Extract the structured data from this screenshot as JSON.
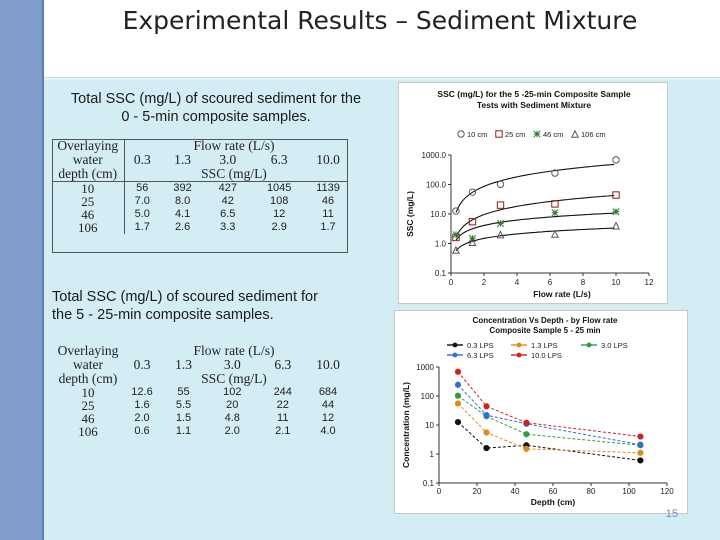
{
  "slide": {
    "title": "Experimental Results – Sediment Mixture",
    "page_number": "15"
  },
  "table1": {
    "caption": "Total SSC (mg/L) of scoured sediment for the 0 - 5-min composite samples.",
    "header_depth": [
      "Overlaying",
      "water",
      "depth (cm)"
    ],
    "header_flow": "Flow rate (L/s)",
    "flow_rates": [
      "0.3",
      "1.3",
      "3.0",
      "6.3",
      "10.0"
    ],
    "header_unit": "SSC (mg/L)",
    "rows": [
      {
        "depth": "10",
        "values": [
          "56",
          "392",
          "427",
          "1045",
          "1139"
        ]
      },
      {
        "depth": "25",
        "values": [
          "7.0",
          "8.0",
          "42",
          "108",
          "46"
        ]
      },
      {
        "depth": "46",
        "values": [
          "5.0",
          "4.1",
          "6.5",
          "12",
          "11"
        ]
      },
      {
        "depth": "106",
        "values": [
          "1.7",
          "2.6",
          "3.3",
          "2.9",
          "1.7"
        ]
      }
    ]
  },
  "table2": {
    "caption": "Total SSC (mg/L) of scoured sediment for the 5 - 25-min composite samples.",
    "header_depth": [
      "Overlaying",
      "water",
      "depth (cm)"
    ],
    "header_flow": "Flow rate (L/s)",
    "flow_rates": [
      "0.3",
      "1.3",
      "3.0",
      "6.3",
      "10.0"
    ],
    "header_unit": "SSC (mg/L)",
    "rows": [
      {
        "depth": "10",
        "values": [
          "12.6",
          "55",
          "102",
          "244",
          "684"
        ]
      },
      {
        "depth": "25",
        "values": [
          "1.6",
          "5.5",
          "20",
          "22",
          "44"
        ]
      },
      {
        "depth": "46",
        "values": [
          "2.0",
          "1.5",
          "4.8",
          "11",
          "12"
        ]
      },
      {
        "depth": "106",
        "values": [
          "0.6",
          "1.1",
          "2.0",
          "2.1",
          "4.0"
        ]
      }
    ]
  },
  "chart_data": [
    {
      "type": "scatter",
      "title": "SSC (mg/L) for the 5 -25-min Composite Sample Tests with Sediment Mixture",
      "xlabel": "Flow rate (L/s)",
      "ylabel": "SSC (mg/L)",
      "xlim": [
        0,
        12
      ],
      "ylim": [
        0.1,
        1000
      ],
      "yscale": "log",
      "x_ticks": [
        "0",
        "2",
        "4",
        "6",
        "8",
        "10",
        "12"
      ],
      "y_ticks": [
        "0.1",
        "1.0",
        "10.0",
        "100.0",
        "1000.0"
      ],
      "legend_position": "top",
      "series": [
        {
          "name": "10 cm",
          "marker": "circle",
          "color": "#555555",
          "x": [
            0.3,
            1.3,
            3.0,
            6.3,
            10.0
          ],
          "y": [
            12.6,
            55,
            102,
            244,
            684
          ]
        },
        {
          "name": "25 cm",
          "marker": "square",
          "color": "#8b1a1a",
          "x": [
            0.3,
            1.3,
            3.0,
            6.3,
            10.0
          ],
          "y": [
            1.6,
            5.5,
            20,
            22,
            44
          ]
        },
        {
          "name": "46 cm",
          "marker": "star",
          "color": "#2a7a2a",
          "x": [
            0.3,
            1.3,
            3.0,
            6.3,
            10.0
          ],
          "y": [
            2.0,
            1.5,
            4.8,
            11,
            12
          ]
        },
        {
          "name": "106 cm",
          "marker": "triangle",
          "color": "#555555",
          "x": [
            0.3,
            1.3,
            3.0,
            6.3,
            10.0
          ],
          "y": [
            0.6,
            1.1,
            2.0,
            2.1,
            4.0
          ]
        }
      ]
    },
    {
      "type": "line",
      "title": "Concentration Vs Depth - by Flow rate Composite Sample 5 - 25 min",
      "xlabel": "Depth (cm)",
      "ylabel": "Concentration (mg/L)",
      "xlim": [
        0,
        120
      ],
      "ylim": [
        0.1,
        1000
      ],
      "yscale": "log",
      "x_ticks": [
        "0",
        "20",
        "40",
        "60",
        "80",
        "100",
        "120"
      ],
      "y_ticks": [
        "0.1",
        "1",
        "10",
        "100",
        "1000"
      ],
      "legend_position": "top",
      "series": [
        {
          "name": "0.3 LPS",
          "color": "#111111",
          "x": [
            10,
            25,
            46,
            106
          ],
          "y": [
            12.6,
            1.6,
            2.0,
            0.6
          ]
        },
        {
          "name": "1.3 LPS",
          "color": "#e08a1e",
          "x": [
            10,
            25,
            46,
            106
          ],
          "y": [
            55,
            5.5,
            1.5,
            1.1
          ]
        },
        {
          "name": "3.0 LPS",
          "color": "#2e9e3e",
          "x": [
            10,
            25,
            46,
            106
          ],
          "y": [
            102,
            20,
            4.8,
            2.0
          ]
        },
        {
          "name": "6.3 LPS",
          "color": "#2e6fd0",
          "x": [
            10,
            25,
            46,
            106
          ],
          "y": [
            244,
            22,
            11,
            2.1
          ]
        },
        {
          "name": "10.0 LPS",
          "color": "#d42020",
          "x": [
            10,
            25,
            46,
            106
          ],
          "y": [
            684,
            44,
            12,
            4.0
          ]
        }
      ]
    }
  ]
}
